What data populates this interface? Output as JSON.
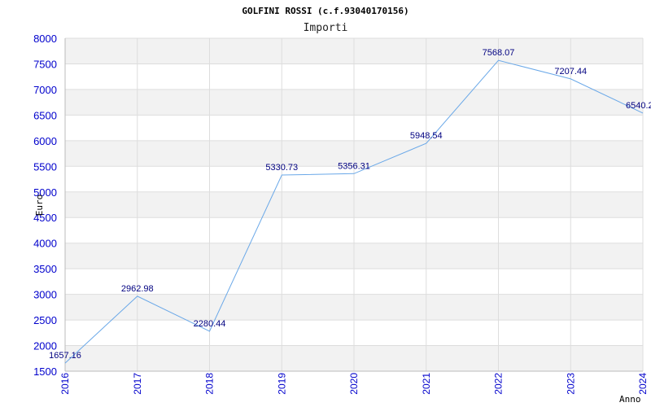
{
  "chart_data": {
    "type": "line",
    "title": "GOLFINI ROSSI (c.f.93040170156)",
    "subtitle": "Importi",
    "xlabel": "Anno",
    "ylabel": "Euro",
    "ylim": [
      1500,
      8000
    ],
    "ytick_step": 500,
    "x": [
      "2016",
      "2017",
      "2018",
      "2019",
      "2020",
      "2021",
      "2022",
      "2023",
      "2024"
    ],
    "series": [
      {
        "values": [
          1657.16,
          2962.98,
          2280.44,
          5330.73,
          5356.31,
          5948.54,
          7568.07,
          7207.44,
          6540.2
        ],
        "labels": [
          "1657.16",
          "2962.98",
          "2280.44",
          "5330.73",
          "5356.31",
          "5948.54",
          "7568.07",
          "7207.44",
          "6540.2"
        ]
      }
    ],
    "grid": true,
    "banded_background": true,
    "colors": {
      "line": "#6aa8e8",
      "band": "#f2f2f2",
      "grid": "#dddddd",
      "tick_text": "#0000cc",
      "data_label": "#000080"
    }
  }
}
